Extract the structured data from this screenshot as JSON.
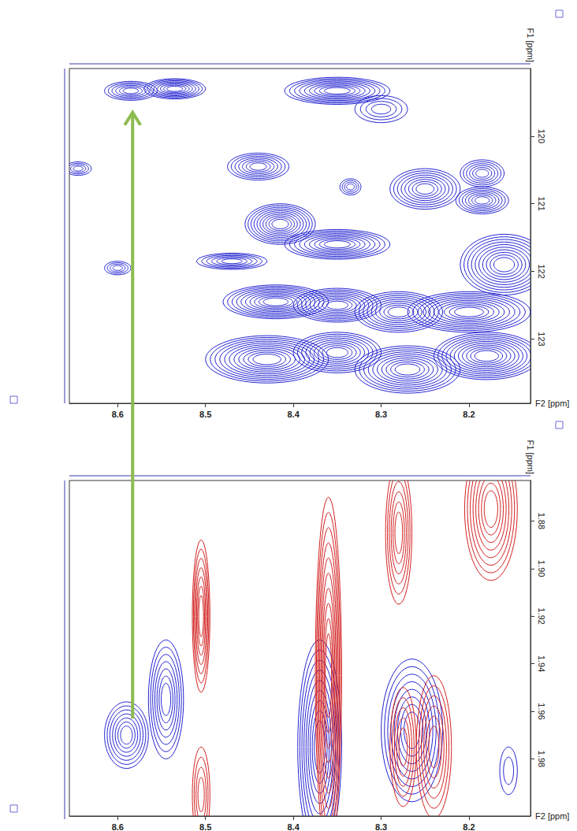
{
  "chart_data": [
    {
      "type": "contour",
      "x_label": "F2 [ppm]",
      "y_label": "F1 [ppm]",
      "xlim": [
        8.13,
        8.655
      ],
      "xticks": [
        8.2,
        8.3,
        8.4,
        8.5,
        8.6
      ],
      "ylim": [
        119.0,
        123.95
      ],
      "yticks": [
        120,
        121,
        122,
        123
      ],
      "grid": false,
      "series": [
        {
          "color": "#2424d2",
          "peaks": [
            {
              "x": 8.585,
              "y": 119.33,
              "x_width": 0.03,
              "y_width": 0.14,
              "intensity": 6
            },
            {
              "x": 8.535,
              "y": 119.3,
              "x_width": 0.035,
              "y_width": 0.15,
              "intensity": 8
            },
            {
              "x": 8.35,
              "y": 119.33,
              "x_width": 0.06,
              "y_width": 0.2,
              "intensity": 9
            },
            {
              "x": 8.3,
              "y": 119.6,
              "x_width": 0.03,
              "y_width": 0.2,
              "intensity": 4
            },
            {
              "x": 8.645,
              "y": 120.48,
              "x_width": 0.015,
              "y_width": 0.1,
              "intensity": 4
            },
            {
              "x": 8.44,
              "y": 120.45,
              "x_width": 0.035,
              "y_width": 0.2,
              "intensity": 7
            },
            {
              "x": 8.335,
              "y": 120.75,
              "x_width": 0.012,
              "y_width": 0.12,
              "intensity": 4
            },
            {
              "x": 8.25,
              "y": 120.78,
              "x_width": 0.04,
              "y_width": 0.3,
              "intensity": 8
            },
            {
              "x": 8.185,
              "y": 120.55,
              "x_width": 0.025,
              "y_width": 0.2,
              "intensity": 6
            },
            {
              "x": 8.185,
              "y": 120.95,
              "x_width": 0.03,
              "y_width": 0.2,
              "intensity": 7
            },
            {
              "x": 8.6,
              "y": 121.95,
              "x_width": 0.015,
              "y_width": 0.1,
              "intensity": 4
            },
            {
              "x": 8.415,
              "y": 121.3,
              "x_width": 0.04,
              "y_width": 0.3,
              "intensity": 10
            },
            {
              "x": 8.35,
              "y": 121.6,
              "x_width": 0.06,
              "y_width": 0.22,
              "intensity": 9
            },
            {
              "x": 8.47,
              "y": 121.85,
              "x_width": 0.04,
              "y_width": 0.12,
              "intensity": 6
            },
            {
              "x": 8.16,
              "y": 121.9,
              "x_width": 0.05,
              "y_width": 0.45,
              "intensity": 10
            },
            {
              "x": 8.42,
              "y": 122.45,
              "x_width": 0.06,
              "y_width": 0.25,
              "intensity": 10
            },
            {
              "x": 8.35,
              "y": 122.5,
              "x_width": 0.05,
              "y_width": 0.25,
              "intensity": 9
            },
            {
              "x": 8.28,
              "y": 122.6,
              "x_width": 0.05,
              "y_width": 0.3,
              "intensity": 9
            },
            {
              "x": 8.2,
              "y": 122.6,
              "x_width": 0.07,
              "y_width": 0.3,
              "intensity": 10
            },
            {
              "x": 8.43,
              "y": 123.3,
              "x_width": 0.07,
              "y_width": 0.35,
              "intensity": 11
            },
            {
              "x": 8.35,
              "y": 123.2,
              "x_width": 0.05,
              "y_width": 0.3,
              "intensity": 9
            },
            {
              "x": 8.27,
              "y": 123.45,
              "x_width": 0.06,
              "y_width": 0.35,
              "intensity": 10
            },
            {
              "x": 8.18,
              "y": 123.25,
              "x_width": 0.06,
              "y_width": 0.35,
              "intensity": 11
            }
          ]
        }
      ]
    },
    {
      "type": "contour",
      "x_label": "F2 [ppm]",
      "y_label": "F1 [ppm]",
      "xlim": [
        8.13,
        8.655
      ],
      "xticks": [
        8.2,
        8.3,
        8.4,
        8.5,
        8.6
      ],
      "ylim": [
        1.863,
        2.004
      ],
      "yticks": [
        1.88,
        {
          "value": 1.9,
          "label": "1.90"
        },
        1.92,
        1.94,
        1.96,
        1.98
      ],
      "grid": false,
      "series": [
        {
          "color": "#2424d2",
          "peaks": [
            {
              "x": 8.59,
              "y": 1.97,
              "x_width": 0.025,
              "y_width": 0.014,
              "intensity": 7
            },
            {
              "x": 8.545,
              "y": 1.955,
              "x_width": 0.02,
              "y_width": 0.025,
              "intensity": 7
            },
            {
              "x": 8.37,
              "y": 1.975,
              "x_width": 0.025,
              "y_width": 0.045,
              "intensity": 9
            },
            {
              "x": 8.265,
              "y": 1.968,
              "x_width": 0.035,
              "y_width": 0.03,
              "intensity": 8
            },
            {
              "x": 8.155,
              "y": 1.985,
              "x_width": 0.01,
              "y_width": 0.01,
              "intensity": 2
            }
          ]
        },
        {
          "color": "#d42222",
          "peaks": [
            {
              "x": 8.505,
              "y": 1.92,
              "x_width": 0.01,
              "y_width": 0.032,
              "intensity": 7
            },
            {
              "x": 8.505,
              "y": 1.995,
              "x_width": 0.01,
              "y_width": 0.02,
              "intensity": 4
            },
            {
              "x": 8.36,
              "y": 1.945,
              "x_width": 0.015,
              "y_width": 0.075,
              "intensity": 10
            },
            {
              "x": 8.28,
              "y": 1.885,
              "x_width": 0.015,
              "y_width": 0.03,
              "intensity": 6
            },
            {
              "x": 8.175,
              "y": 1.875,
              "x_width": 0.03,
              "y_width": 0.03,
              "intensity": 8
            },
            {
              "x": 8.24,
              "y": 1.975,
              "x_width": 0.02,
              "y_width": 0.03,
              "intensity": 6
            },
            {
              "x": 8.275,
              "y": 1.975,
              "x_width": 0.015,
              "y_width": 0.025,
              "intensity": 5
            }
          ]
        }
      ]
    }
  ],
  "arrow": {
    "color": "#8dbb4f",
    "x": 8.583,
    "from_y": 1.963,
    "to_y": 119.65
  }
}
